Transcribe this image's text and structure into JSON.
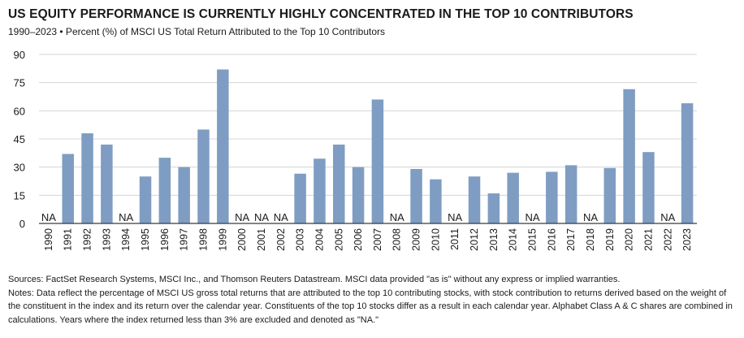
{
  "title": "US EQUITY PERFORMANCE IS CURRENTLY HIGHLY CONCENTRATED IN THE TOP 10 CONTRIBUTORS",
  "subtitle": "1990–2023 • Percent (%) of MSCI US Total Return Attributed to the Top 10 Contributors",
  "colors": {
    "bar": "#7f9dc3",
    "grid": "#d4d4d4",
    "text": "#1a1a1a"
  },
  "chart_data": {
    "type": "bar",
    "categories": [
      "1990",
      "1991",
      "1992",
      "1993",
      "1994",
      "1995",
      "1996",
      "1997",
      "1998",
      "1999",
      "2000",
      "2001",
      "2002",
      "2003",
      "2004",
      "2005",
      "2006",
      "2007",
      "2008",
      "2009",
      "2010",
      "2011",
      "2012",
      "2013",
      "2014",
      "2015",
      "2016",
      "2017",
      "2018",
      "2019",
      "2020",
      "2021",
      "2022",
      "2023"
    ],
    "values": [
      null,
      37,
      48,
      42,
      null,
      25,
      35,
      30,
      50,
      82,
      null,
      null,
      null,
      26.5,
      34.5,
      42,
      30,
      66,
      null,
      29,
      23.5,
      null,
      25,
      16,
      27,
      null,
      27.5,
      31,
      null,
      29.5,
      71.5,
      38,
      null,
      64
    ],
    "na_label": "NA",
    "yticks": [
      0,
      15,
      30,
      45,
      60,
      75,
      90
    ],
    "ylim": [
      0,
      90
    ],
    "grid": true
  },
  "footer": {
    "sources": "Sources: FactSet Research Systems, MSCI Inc., and Thomson Reuters Datastream. MSCI data provided \"as is\" without any express or implied warranties.",
    "notes": "Notes: Data reflect the percentage of MSCI US gross total returns that are attributed to the top 10 contributing stocks, with stock contribution to returns derived based on the weight of the constituent in the index and its return over the calendar year. Constituents of the top 10 stocks differ as a result in each calendar year. Alphabet Class A & C shares are combined in calculations. Years where the index returned less than 3% are excluded and denoted as \"NA.\""
  }
}
